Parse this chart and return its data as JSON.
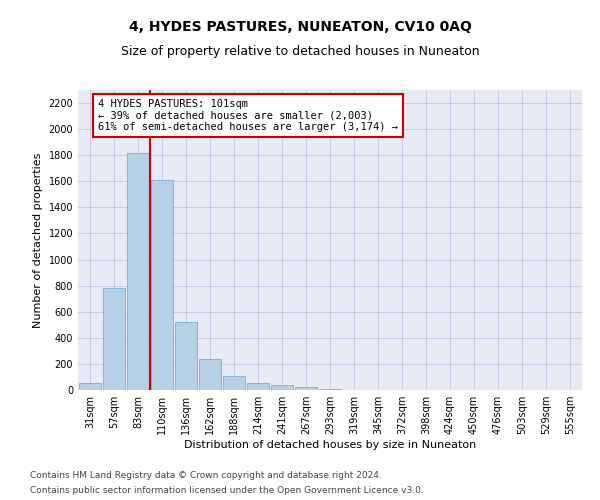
{
  "title": "4, HYDES PASTURES, NUNEATON, CV10 0AQ",
  "subtitle": "Size of property relative to detached houses in Nuneaton",
  "xlabel": "Distribution of detached houses by size in Nuneaton",
  "ylabel": "Number of detached properties",
  "categories": [
    "31sqm",
    "57sqm",
    "83sqm",
    "110sqm",
    "136sqm",
    "162sqm",
    "188sqm",
    "214sqm",
    "241sqm",
    "267sqm",
    "293sqm",
    "319sqm",
    "345sqm",
    "372sqm",
    "398sqm",
    "424sqm",
    "450sqm",
    "476sqm",
    "503sqm",
    "529sqm",
    "555sqm"
  ],
  "values": [
    50,
    780,
    1820,
    1610,
    520,
    235,
    105,
    55,
    40,
    25,
    10,
    3,
    1,
    0,
    0,
    0,
    0,
    0,
    0,
    0,
    0
  ],
  "bar_color": "#b8cfe8",
  "bar_edge_color": "#7aaed6",
  "grid_color": "#c8cce8",
  "background_color": "#e8eaf5",
  "vline_color": "#cc0000",
  "annotation_text": "4 HYDES PASTURES: 101sqm\n← 39% of detached houses are smaller (2,003)\n61% of semi-detached houses are larger (3,174) →",
  "annotation_edge_color": "#cc0000",
  "ylim": [
    0,
    2300
  ],
  "yticks": [
    0,
    200,
    400,
    600,
    800,
    1000,
    1200,
    1400,
    1600,
    1800,
    2000,
    2200
  ],
  "footer1": "Contains HM Land Registry data © Crown copyright and database right 2024.",
  "footer2": "Contains public sector information licensed under the Open Government Licence v3.0.",
  "title_fontsize": 10,
  "subtitle_fontsize": 9,
  "axis_label_fontsize": 8,
  "tick_fontsize": 7,
  "annotation_fontsize": 7.5,
  "footer_fontsize": 6.5
}
